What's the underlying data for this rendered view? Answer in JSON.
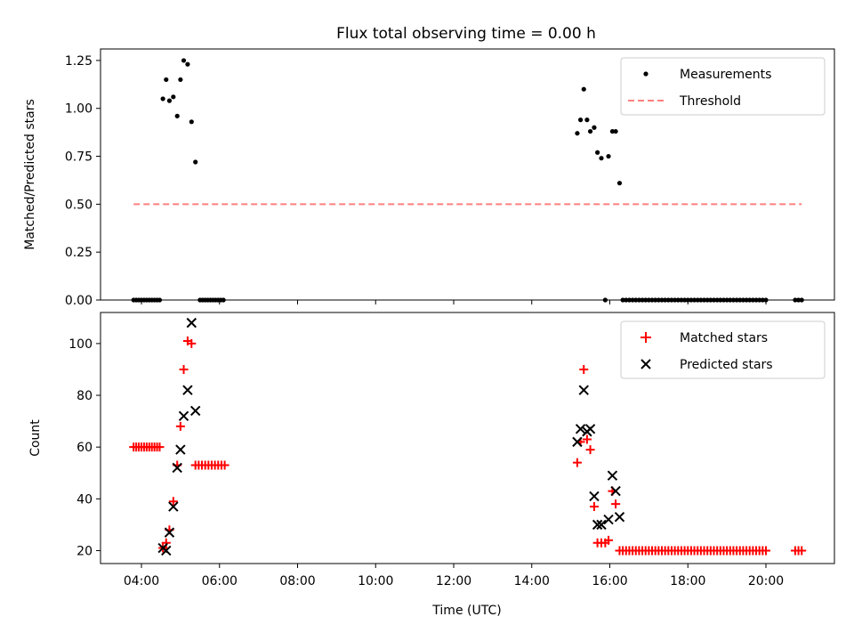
{
  "figure": {
    "title": "Flux total observing time = 0.00 h",
    "xlabel": "Time (UTC)",
    "x_ticks": [
      "04:00",
      "06:00",
      "08:00",
      "10:00",
      "12:00",
      "14:00",
      "16:00",
      "18:00",
      "20:00"
    ]
  },
  "chart_data": [
    {
      "type": "scatter",
      "panel": "top",
      "ylabel": "Matched/Predicted stars",
      "ylim": [
        0,
        1.31
      ],
      "y_ticks": [
        "0.00",
        "0.25",
        "0.50",
        "0.75",
        "1.00",
        "1.25"
      ],
      "legend": {
        "placement": "top-right",
        "entries": [
          "Measurements",
          "Threshold"
        ]
      },
      "series": [
        {
          "name": "Measurements",
          "kind": "dots",
          "color": "#000000",
          "points": [
            [
              "03:48",
              0
            ],
            [
              "03:52",
              0
            ],
            [
              "03:56",
              0
            ],
            [
              "04:00",
              0
            ],
            [
              "04:04",
              0
            ],
            [
              "04:08",
              0
            ],
            [
              "04:12",
              0
            ],
            [
              "04:16",
              0
            ],
            [
              "04:20",
              0
            ],
            [
              "04:24",
              0
            ],
            [
              "04:28",
              0
            ],
            [
              "04:33",
              1.05
            ],
            [
              "04:38",
              1.15
            ],
            [
              "04:43",
              1.04
            ],
            [
              "04:49",
              1.06
            ],
            [
              "04:55",
              0.96
            ],
            [
              "05:00",
              1.15
            ],
            [
              "05:05",
              1.25
            ],
            [
              "05:11",
              1.23
            ],
            [
              "05:17",
              0.93
            ],
            [
              "05:23",
              0.72
            ],
            [
              "05:30",
              0
            ],
            [
              "05:34",
              0
            ],
            [
              "05:38",
              0
            ],
            [
              "05:42",
              0
            ],
            [
              "05:46",
              0
            ],
            [
              "05:50",
              0
            ],
            [
              "05:54",
              0
            ],
            [
              "05:58",
              0
            ],
            [
              "06:02",
              0
            ],
            [
              "06:06",
              0
            ],
            [
              "15:10",
              0.87
            ],
            [
              "15:15",
              0.94
            ],
            [
              "15:20",
              1.1
            ],
            [
              "15:25",
              0.94
            ],
            [
              "15:30",
              0.88
            ],
            [
              "15:36",
              0.9
            ],
            [
              "15:41",
              0.77
            ],
            [
              "15:47",
              0.74
            ],
            [
              "15:53",
              0
            ],
            [
              "15:58",
              0.75
            ],
            [
              "16:04",
              0.88
            ],
            [
              "16:09",
              0.88
            ],
            [
              "16:15",
              0.61
            ],
            [
              "16:20",
              0
            ],
            [
              "16:25",
              0
            ],
            [
              "16:30",
              0
            ],
            [
              "16:35",
              0
            ],
            [
              "16:40",
              0
            ],
            [
              "16:45",
              0
            ],
            [
              "16:50",
              0
            ],
            [
              "16:55",
              0
            ],
            [
              "17:00",
              0
            ],
            [
              "17:05",
              0
            ],
            [
              "17:10",
              0
            ],
            [
              "17:15",
              0
            ],
            [
              "17:20",
              0
            ],
            [
              "17:25",
              0
            ],
            [
              "17:30",
              0
            ],
            [
              "17:35",
              0
            ],
            [
              "17:40",
              0
            ],
            [
              "17:45",
              0
            ],
            [
              "17:50",
              0
            ],
            [
              "17:55",
              0
            ],
            [
              "18:00",
              0
            ],
            [
              "18:05",
              0
            ],
            [
              "18:10",
              0
            ],
            [
              "18:15",
              0
            ],
            [
              "18:20",
              0
            ],
            [
              "18:25",
              0
            ],
            [
              "18:30",
              0
            ],
            [
              "18:35",
              0
            ],
            [
              "18:40",
              0
            ],
            [
              "18:45",
              0
            ],
            [
              "18:50",
              0
            ],
            [
              "18:55",
              0
            ],
            [
              "19:00",
              0
            ],
            [
              "19:05",
              0
            ],
            [
              "19:10",
              0
            ],
            [
              "19:15",
              0
            ],
            [
              "19:20",
              0
            ],
            [
              "19:25",
              0
            ],
            [
              "19:30",
              0
            ],
            [
              "19:35",
              0
            ],
            [
              "19:40",
              0
            ],
            [
              "19:45",
              0
            ],
            [
              "19:50",
              0
            ],
            [
              "19:55",
              0
            ],
            [
              "20:00",
              0
            ],
            [
              "20:45",
              0
            ],
            [
              "20:50",
              0
            ],
            [
              "20:55",
              0
            ]
          ]
        },
        {
          "name": "Threshold",
          "kind": "dashed-line",
          "color": "#ff7f7f",
          "points": [
            [
              "03:48",
              0.5
            ],
            [
              "20:55",
              0.5
            ]
          ]
        }
      ]
    },
    {
      "type": "scatter",
      "panel": "bottom",
      "ylabel": "Count",
      "ylim": [
        15,
        112
      ],
      "y_ticks": [
        "20",
        "40",
        "60",
        "80",
        "100"
      ],
      "legend": {
        "placement": "top-right",
        "entries": [
          "Matched stars",
          "Predicted stars"
        ]
      },
      "series": [
        {
          "name": "Matched stars",
          "kind": "plus",
          "color": "#ff0000",
          "points": [
            [
              "03:48",
              60
            ],
            [
              "03:52",
              60
            ],
            [
              "03:56",
              60
            ],
            [
              "04:00",
              60
            ],
            [
              "04:04",
              60
            ],
            [
              "04:08",
              60
            ],
            [
              "04:12",
              60
            ],
            [
              "04:16",
              60
            ],
            [
              "04:20",
              60
            ],
            [
              "04:24",
              60
            ],
            [
              "04:28",
              60
            ],
            [
              "04:33",
              21
            ],
            [
              "04:38",
              23
            ],
            [
              "04:43",
              28
            ],
            [
              "04:49",
              39
            ],
            [
              "04:55",
              53
            ],
            [
              "05:00",
              68
            ],
            [
              "05:05",
              90
            ],
            [
              "05:11",
              101
            ],
            [
              "05:17",
              100
            ],
            [
              "05:23",
              53
            ],
            [
              "05:28",
              53
            ],
            [
              "05:33",
              53
            ],
            [
              "05:38",
              53
            ],
            [
              "05:43",
              53
            ],
            [
              "05:48",
              53
            ],
            [
              "05:53",
              53
            ],
            [
              "05:58",
              53
            ],
            [
              "06:03",
              53
            ],
            [
              "06:08",
              53
            ],
            [
              "15:10",
              54
            ],
            [
              "15:15",
              62
            ],
            [
              "15:20",
              90
            ],
            [
              "15:25",
              63
            ],
            [
              "15:30",
              59
            ],
            [
              "15:36",
              37
            ],
            [
              "15:41",
              23
            ],
            [
              "15:47",
              23
            ],
            [
              "15:53",
              23
            ],
            [
              "15:58",
              24
            ],
            [
              "16:04",
              43
            ],
            [
              "16:09",
              38
            ],
            [
              "16:15",
              20
            ],
            [
              "16:20",
              20
            ],
            [
              "16:25",
              20
            ],
            [
              "16:30",
              20
            ],
            [
              "16:35",
              20
            ],
            [
              "16:40",
              20
            ],
            [
              "16:45",
              20
            ],
            [
              "16:50",
              20
            ],
            [
              "16:55",
              20
            ],
            [
              "17:00",
              20
            ],
            [
              "17:05",
              20
            ],
            [
              "17:10",
              20
            ],
            [
              "17:15",
              20
            ],
            [
              "17:20",
              20
            ],
            [
              "17:25",
              20
            ],
            [
              "17:30",
              20
            ],
            [
              "17:35",
              20
            ],
            [
              "17:40",
              20
            ],
            [
              "17:45",
              20
            ],
            [
              "17:50",
              20
            ],
            [
              "17:55",
              20
            ],
            [
              "18:00",
              20
            ],
            [
              "18:05",
              20
            ],
            [
              "18:10",
              20
            ],
            [
              "18:15",
              20
            ],
            [
              "18:20",
              20
            ],
            [
              "18:25",
              20
            ],
            [
              "18:30",
              20
            ],
            [
              "18:35",
              20
            ],
            [
              "18:40",
              20
            ],
            [
              "18:45",
              20
            ],
            [
              "18:50",
              20
            ],
            [
              "18:55",
              20
            ],
            [
              "19:00",
              20
            ],
            [
              "19:05",
              20
            ],
            [
              "19:10",
              20
            ],
            [
              "19:15",
              20
            ],
            [
              "19:20",
              20
            ],
            [
              "19:25",
              20
            ],
            [
              "19:30",
              20
            ],
            [
              "19:35",
              20
            ],
            [
              "19:40",
              20
            ],
            [
              "19:45",
              20
            ],
            [
              "19:50",
              20
            ],
            [
              "19:55",
              20
            ],
            [
              "20:00",
              20
            ],
            [
              "20:45",
              20
            ],
            [
              "20:50",
              20
            ],
            [
              "20:55",
              20
            ]
          ]
        },
        {
          "name": "Predicted stars",
          "kind": "x",
          "color": "#000000",
          "points": [
            [
              "04:33",
              21
            ],
            [
              "04:38",
              20
            ],
            [
              "04:43",
              27
            ],
            [
              "04:49",
              37
            ],
            [
              "04:55",
              52
            ],
            [
              "05:00",
              59
            ],
            [
              "05:05",
              72
            ],
            [
              "05:11",
              82
            ],
            [
              "05:17",
              108
            ],
            [
              "05:23",
              74
            ],
            [
              "15:10",
              62
            ],
            [
              "15:15",
              67
            ],
            [
              "15:20",
              82
            ],
            [
              "15:25",
              66
            ],
            [
              "15:30",
              67
            ],
            [
              "15:36",
              41
            ],
            [
              "15:41",
              30
            ],
            [
              "15:47",
              30
            ],
            [
              "15:58",
              32
            ],
            [
              "16:04",
              49
            ],
            [
              "16:09",
              43
            ],
            [
              "16:15",
              33
            ]
          ]
        }
      ]
    }
  ]
}
